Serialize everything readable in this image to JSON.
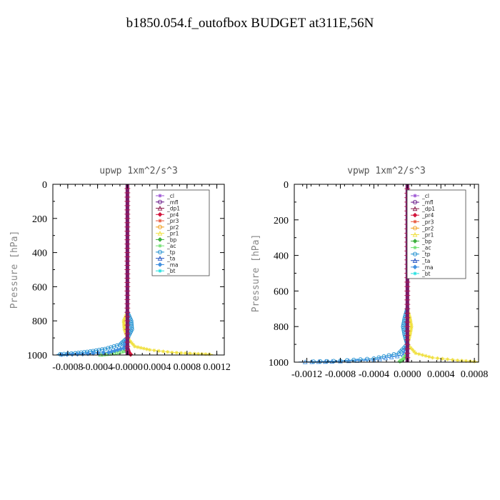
{
  "title": "b1850.054.f_outofbox  BUDGET at311E,56N",
  "legend_entries": [
    "_cl",
    "_mfl",
    "_dp1",
    "_pr4",
    "_pr3",
    "_pr2",
    "_pr1",
    "_bp",
    "_ac",
    "_tp",
    "_ta",
    "_ma",
    "_bt"
  ],
  "legend_colors": [
    "#9a4fd3",
    "#6a1a8a",
    "#8b1a4a",
    "#d4143c",
    "#e8563c",
    "#f0a020",
    "#f0e040",
    "#40b040",
    "#70e070",
    "#2090d0",
    "#2050c0",
    "#4090e0",
    "#20e0e0"
  ],
  "chart_data": [
    {
      "type": "line",
      "title": "upwp   1xm^2/s^3",
      "ylabel": "Pressure  [hPa]",
      "xlabel": "",
      "xlim": [
        -0.001,
        0.0013
      ],
      "ylim": [
        1000,
        0
      ],
      "xticks": [
        "-0.0008",
        "-0.0004",
        "-0.0000",
        "0.0004",
        "0.0008",
        "0.0012"
      ],
      "yticks": [
        "0",
        "200",
        "400",
        "600",
        "800",
        "1000"
      ],
      "grid": false,
      "legend_position": "top-right",
      "series": [
        {
          "name": "_pr1",
          "points": [
            [
              0,
              0
            ],
            [
              0,
              600
            ],
            [
              0,
              750
            ],
            [
              -5e-05,
              800
            ],
            [
              -4e-05,
              850
            ],
            [
              0,
              900
            ],
            [
              0.0001,
              950
            ],
            [
              0.0003,
              970
            ],
            [
              0.0006,
              985
            ],
            [
              0.0009,
              992
            ],
            [
              0.00115,
              997
            ]
          ]
        },
        {
          "name": "_tp",
          "points": [
            [
              0,
              0
            ],
            [
              0,
              600
            ],
            [
              0,
              750
            ],
            [
              5e-05,
              800
            ],
            [
              6e-05,
              850
            ],
            [
              0,
              900
            ],
            [
              -0.0001,
              940
            ],
            [
              -0.0003,
              965
            ],
            [
              -0.0005,
              980
            ],
            [
              -0.0007,
              990
            ],
            [
              -0.00095,
              997
            ]
          ]
        },
        {
          "name": "_ac",
          "points": [
            [
              0,
              0
            ],
            [
              0,
              900
            ],
            [
              0,
              950
            ],
            [
              -5e-05,
              975
            ],
            [
              -0.0002,
              990
            ],
            [
              -0.0004,
              998
            ]
          ]
        },
        {
          "name": "_ma",
          "points": [
            [
              0,
              0
            ],
            [
              0,
              900
            ],
            [
              -5e-05,
              960
            ],
            [
              -0.00025,
              985
            ],
            [
              -0.0006,
              995
            ],
            [
              -0.00095,
              999
            ]
          ]
        },
        {
          "name": "_cl",
          "points": [
            [
              0,
              0
            ],
            [
              0,
              1000
            ]
          ]
        },
        {
          "name": "_mfl",
          "points": [
            [
              0,
              0
            ],
            [
              0,
              1000
            ]
          ]
        },
        {
          "name": "_dp1",
          "points": [
            [
              0,
              0
            ],
            [
              0,
              1000
            ]
          ]
        },
        {
          "name": "_pr4",
          "points": [
            [
              0,
              0
            ],
            [
              0,
              960
            ],
            [
              2e-05,
              985
            ],
            [
              5e-05,
              1000
            ]
          ]
        },
        {
          "name": "_pr3",
          "points": [
            [
              0,
              0
            ],
            [
              0,
              1000
            ]
          ]
        },
        {
          "name": "_pr2",
          "points": [
            [
              0,
              0
            ],
            [
              0,
              1000
            ]
          ]
        },
        {
          "name": "_bp",
          "points": [
            [
              0,
              0
            ],
            [
              0,
              1000
            ]
          ]
        },
        {
          "name": "_ta",
          "points": [
            [
              0,
              0
            ],
            [
              0,
              1000
            ]
          ]
        },
        {
          "name": "_bt",
          "points": [
            [
              0,
              0
            ],
            [
              0,
              1000
            ]
          ]
        }
      ]
    },
    {
      "type": "line",
      "title": "vpwp   1xm^2/s^3",
      "ylabel": "Pressure  [hPa]",
      "xlabel": "",
      "xlim": [
        -0.00135,
        0.00085
      ],
      "ylim": [
        1000,
        0
      ],
      "xticks": [
        "-0.0012",
        "-0.0008",
        "-0.0004",
        "0.0000",
        "0.0004",
        "0.0008"
      ],
      "yticks": [
        "0",
        "200",
        "400",
        "600",
        "800",
        "1000"
      ],
      "grid": false,
      "legend_position": "top-right",
      "series": [
        {
          "name": "_pr1",
          "points": [
            [
              0,
              0
            ],
            [
              0,
              600
            ],
            [
              0,
              700
            ],
            [
              3e-05,
              750
            ],
            [
              5e-05,
              800
            ],
            [
              3e-05,
              850
            ],
            [
              0,
              900
            ],
            [
              0.0001,
              950
            ],
            [
              0.0003,
              975
            ],
            [
              0.0006,
              990
            ],
            [
              0.00085,
              998
            ]
          ]
        },
        {
          "name": "_tp",
          "points": [
            [
              0,
              0
            ],
            [
              0,
              600
            ],
            [
              0,
              700
            ],
            [
              -3e-05,
              750
            ],
            [
              -5e-05,
              800
            ],
            [
              -3e-05,
              850
            ],
            [
              0,
              900
            ],
            [
              -0.0001,
              950
            ],
            [
              -0.0004,
              980
            ],
            [
              -0.0008,
              993
            ],
            [
              -0.0012,
              998
            ]
          ]
        },
        {
          "name": "_ma",
          "points": [
            [
              0,
              0
            ],
            [
              0,
              900
            ],
            [
              -5e-05,
              960
            ],
            [
              -0.0004,
              988
            ],
            [
              -0.0009,
              996
            ],
            [
              -0.0013,
              999
            ]
          ]
        },
        {
          "name": "_ac",
          "points": [
            [
              0,
              0
            ],
            [
              0,
              950
            ],
            [
              -5e-05,
              985
            ],
            [
              -0.0001,
              998
            ]
          ]
        },
        {
          "name": "_cl",
          "points": [
            [
              0,
              0
            ],
            [
              0,
              1000
            ]
          ]
        },
        {
          "name": "_mfl",
          "points": [
            [
              0,
              0
            ],
            [
              0,
              1000
            ]
          ]
        },
        {
          "name": "_dp1",
          "points": [
            [
              0,
              0
            ],
            [
              0,
              1000
            ]
          ]
        },
        {
          "name": "_pr4",
          "points": [
            [
              0,
              0
            ],
            [
              0,
              1000
            ]
          ]
        },
        {
          "name": "_pr3",
          "points": [
            [
              0,
              0
            ],
            [
              0,
              1000
            ]
          ]
        },
        {
          "name": "_pr2",
          "points": [
            [
              0,
              0
            ],
            [
              0,
              1000
            ]
          ]
        },
        {
          "name": "_bp",
          "points": [
            [
              0,
              0
            ],
            [
              0,
              1000
            ]
          ]
        },
        {
          "name": "_ta",
          "points": [
            [
              0,
              0
            ],
            [
              0,
              1000
            ]
          ]
        },
        {
          "name": "_bt",
          "points": [
            [
              0,
              0
            ],
            [
              0,
              1000
            ]
          ]
        }
      ]
    }
  ]
}
